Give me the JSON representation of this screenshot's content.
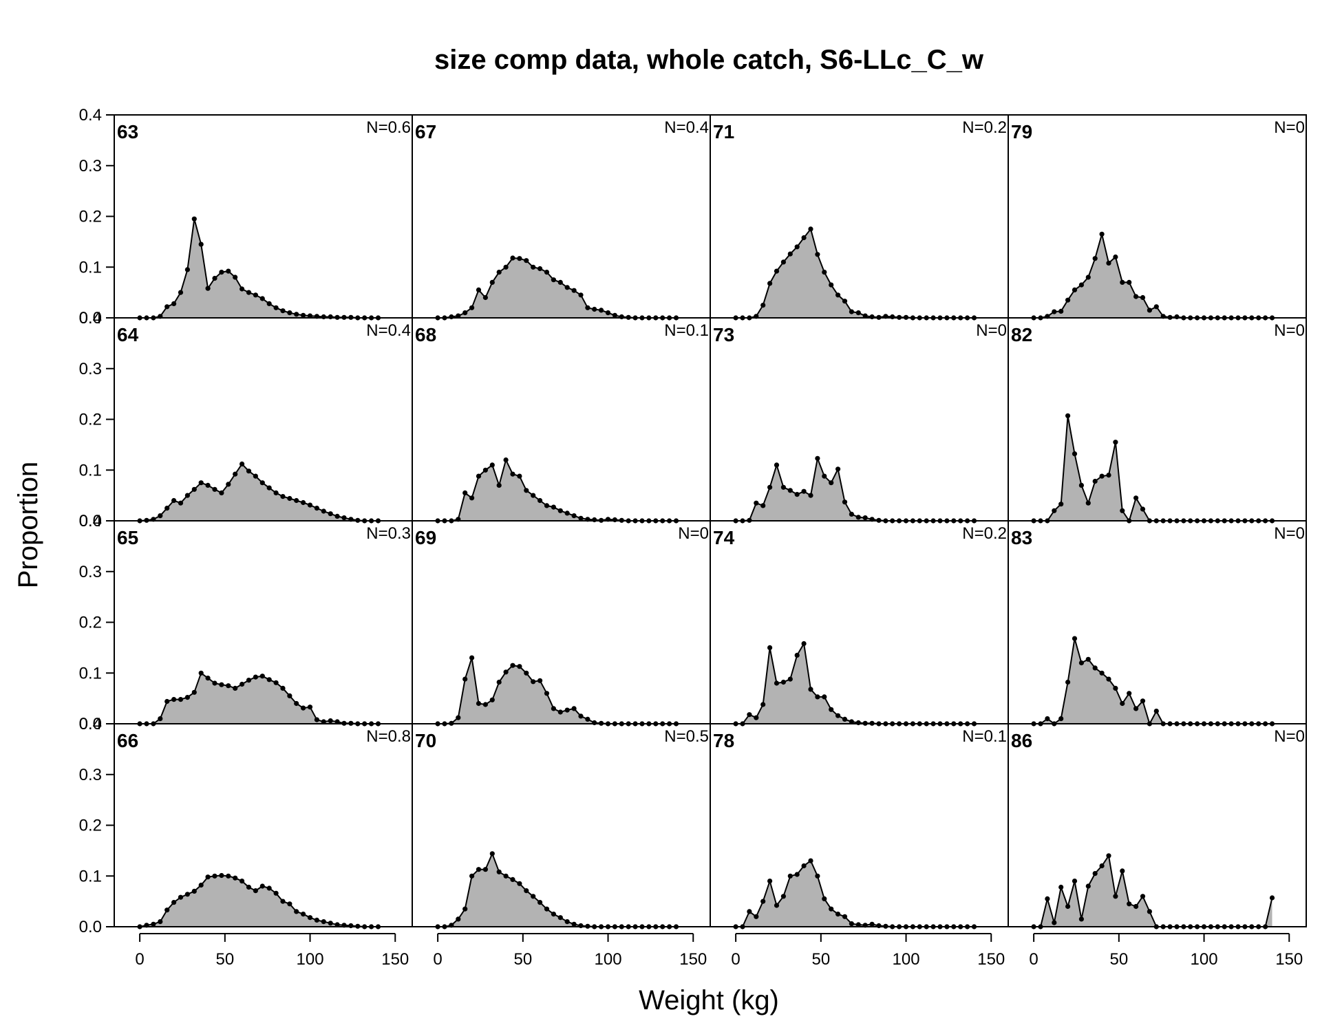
{
  "chart_data": {
    "type": "area",
    "title": "size comp data, whole catch, S6-LLc_C_w",
    "xlabel": "Weight (kg)",
    "ylabel": "Proportion",
    "xlim": [
      -15,
      160
    ],
    "ylim": [
      0,
      0.4
    ],
    "xticks": [
      0,
      50,
      100,
      150
    ],
    "yticks": [
      0.0,
      0.1,
      0.2,
      0.3,
      0.4
    ],
    "ytick_labels": [
      "0.0",
      "0.1",
      "0.2",
      "0.3",
      "0.4"
    ],
    "grid": false,
    "layout": {
      "rows": 4,
      "cols": 4,
      "order": "column-major"
    },
    "x": [
      0,
      4,
      8,
      12,
      16,
      20,
      24,
      28,
      32,
      36,
      40,
      44,
      48,
      52,
      56,
      60,
      64,
      68,
      72,
      76,
      80,
      84,
      88,
      92,
      96,
      100,
      104,
      108,
      112,
      116,
      120,
      124,
      128,
      132,
      136,
      140
    ],
    "panels": [
      {
        "year": "63",
        "n": "N=0.6",
        "values": [
          0,
          0,
          0,
          0.003,
          0.022,
          0.028,
          0.05,
          0.095,
          0.195,
          0.145,
          0.058,
          0.078,
          0.09,
          0.092,
          0.08,
          0.057,
          0.05,
          0.045,
          0.038,
          0.028,
          0.02,
          0.014,
          0.01,
          0.007,
          0.005,
          0.004,
          0.003,
          0.002,
          0.002,
          0.001,
          0.001,
          0.001,
          0,
          0,
          0,
          0
        ]
      },
      {
        "year": "64",
        "n": "N=0.4",
        "values": [
          0,
          0.001,
          0.003,
          0.01,
          0.025,
          0.04,
          0.035,
          0.05,
          0.062,
          0.075,
          0.07,
          0.062,
          0.055,
          0.072,
          0.092,
          0.112,
          0.098,
          0.088,
          0.075,
          0.065,
          0.055,
          0.048,
          0.044,
          0.04,
          0.036,
          0.031,
          0.025,
          0.019,
          0.014,
          0.009,
          0.006,
          0.003,
          0.001,
          0,
          0,
          0
        ]
      },
      {
        "year": "65",
        "n": "N=0.3",
        "values": [
          0,
          0,
          0,
          0.01,
          0.044,
          0.048,
          0.048,
          0.052,
          0.062,
          0.1,
          0.09,
          0.08,
          0.077,
          0.075,
          0.07,
          0.078,
          0.086,
          0.092,
          0.094,
          0.087,
          0.081,
          0.07,
          0.055,
          0.04,
          0.031,
          0.033,
          0.008,
          0.004,
          0.006,
          0.004,
          0.001,
          0.001,
          0,
          0,
          0,
          0
        ]
      },
      {
        "year": "66",
        "n": "N=0.8",
        "values": [
          0,
          0.003,
          0.005,
          0.01,
          0.033,
          0.048,
          0.058,
          0.064,
          0.07,
          0.082,
          0.098,
          0.1,
          0.101,
          0.1,
          0.096,
          0.09,
          0.078,
          0.071,
          0.08,
          0.076,
          0.066,
          0.05,
          0.045,
          0.03,
          0.025,
          0.018,
          0.013,
          0.01,
          0.007,
          0.004,
          0.003,
          0.002,
          0.001,
          0,
          0,
          0
        ]
      },
      {
        "year": "67",
        "n": "N=0.4",
        "values": [
          0,
          0,
          0.002,
          0.004,
          0.01,
          0.02,
          0.055,
          0.04,
          0.07,
          0.09,
          0.1,
          0.118,
          0.117,
          0.113,
          0.1,
          0.097,
          0.09,
          0.075,
          0.07,
          0.06,
          0.054,
          0.045,
          0.02,
          0.017,
          0.015,
          0.01,
          0.005,
          0.002,
          0.001,
          0,
          0,
          0,
          0,
          0,
          0,
          0
        ]
      },
      {
        "year": "68",
        "n": "N=0.1",
        "values": [
          0,
          0,
          0,
          0.003,
          0.055,
          0.045,
          0.088,
          0.1,
          0.11,
          0.07,
          0.12,
          0.092,
          0.088,
          0.06,
          0.05,
          0.04,
          0.03,
          0.027,
          0.02,
          0.015,
          0.01,
          0.005,
          0.003,
          0.002,
          0.001,
          0.003,
          0.002,
          0.001,
          0,
          0,
          0,
          0,
          0,
          0,
          0,
          0
        ]
      },
      {
        "year": "69",
        "n": "N=0",
        "values": [
          0,
          0,
          0.001,
          0.012,
          0.088,
          0.13,
          0.04,
          0.038,
          0.047,
          0.082,
          0.102,
          0.115,
          0.113,
          0.1,
          0.083,
          0.085,
          0.06,
          0.03,
          0.023,
          0.027,
          0.03,
          0.015,
          0.009,
          0.002,
          0.001,
          0,
          0,
          0,
          0,
          0,
          0,
          0,
          0,
          0,
          0,
          0
        ]
      },
      {
        "year": "70",
        "n": "N=0.5",
        "values": [
          0,
          0,
          0.003,
          0.015,
          0.035,
          0.1,
          0.113,
          0.113,
          0.144,
          0.108,
          0.1,
          0.093,
          0.085,
          0.071,
          0.06,
          0.048,
          0.035,
          0.025,
          0.018,
          0.01,
          0.005,
          0.002,
          0.001,
          0,
          0,
          0,
          0,
          0,
          0,
          0,
          0,
          0,
          0,
          0,
          0,
          0
        ]
      },
      {
        "year": "71",
        "n": "N=0.2",
        "values": [
          0,
          0,
          0,
          0.003,
          0.025,
          0.068,
          0.092,
          0.11,
          0.126,
          0.14,
          0.158,
          0.175,
          0.125,
          0.09,
          0.065,
          0.045,
          0.033,
          0.012,
          0.01,
          0.004,
          0.002,
          0.001,
          0.003,
          0.002,
          0.001,
          0.001,
          0,
          0,
          0,
          0,
          0,
          0,
          0,
          0,
          0,
          0
        ]
      },
      {
        "year": "73",
        "n": "N=0",
        "values": [
          0,
          0,
          0.001,
          0.035,
          0.03,
          0.066,
          0.11,
          0.066,
          0.06,
          0.052,
          0.058,
          0.05,
          0.123,
          0.088,
          0.075,
          0.102,
          0.037,
          0.013,
          0.007,
          0.006,
          0.003,
          0.001,
          0,
          0,
          0,
          0,
          0,
          0,
          0,
          0,
          0,
          0,
          0,
          0,
          0,
          0
        ]
      },
      {
        "year": "74",
        "n": "N=0.2",
        "values": [
          0,
          0,
          0.018,
          0.012,
          0.038,
          0.15,
          0.08,
          0.082,
          0.088,
          0.135,
          0.158,
          0.068,
          0.053,
          0.053,
          0.028,
          0.016,
          0.009,
          0.004,
          0.002,
          0.001,
          0.001,
          0,
          0,
          0,
          0,
          0,
          0,
          0,
          0,
          0,
          0,
          0,
          0,
          0,
          0,
          0
        ]
      },
      {
        "year": "78",
        "n": "N=0.1",
        "values": [
          0,
          0,
          0.03,
          0.02,
          0.05,
          0.09,
          0.042,
          0.06,
          0.1,
          0.103,
          0.12,
          0.13,
          0.1,
          0.055,
          0.035,
          0.025,
          0.02,
          0.006,
          0.004,
          0.003,
          0.005,
          0.002,
          0.001,
          0,
          0,
          0,
          0,
          0,
          0,
          0,
          0,
          0,
          0,
          0,
          0,
          0
        ]
      },
      {
        "year": "79",
        "n": "N=0",
        "values": [
          0,
          0,
          0.003,
          0.012,
          0.013,
          0.035,
          0.055,
          0.065,
          0.08,
          0.117,
          0.165,
          0.108,
          0.12,
          0.07,
          0.07,
          0.042,
          0.04,
          0.015,
          0.022,
          0.003,
          0.001,
          0.002,
          0,
          0,
          0,
          0,
          0,
          0,
          0,
          0,
          0,
          0,
          0,
          0,
          0,
          0
        ]
      },
      {
        "year": "82",
        "n": "N=0",
        "values": [
          0,
          0,
          0,
          0.02,
          0.033,
          0.207,
          0.132,
          0.07,
          0.035,
          0.078,
          0.088,
          0.09,
          0.155,
          0.02,
          0,
          0.045,
          0.023,
          0,
          0,
          0,
          0,
          0,
          0,
          0,
          0,
          0,
          0,
          0,
          0,
          0,
          0,
          0,
          0,
          0,
          0,
          0
        ]
      },
      {
        "year": "83",
        "n": "N=0",
        "values": [
          0,
          0,
          0.01,
          0,
          0.01,
          0.082,
          0.168,
          0.12,
          0.127,
          0.11,
          0.1,
          0.088,
          0.07,
          0.04,
          0.06,
          0.03,
          0.045,
          0,
          0.025,
          0,
          0,
          0,
          0,
          0,
          0,
          0,
          0,
          0,
          0,
          0,
          0,
          0,
          0,
          0,
          0,
          0
        ]
      },
      {
        "year": "86",
        "n": "N=0",
        "values": [
          0,
          0,
          0.055,
          0.008,
          0.078,
          0.04,
          0.09,
          0.015,
          0.08,
          0.105,
          0.12,
          0.14,
          0.06,
          0.11,
          0.045,
          0.04,
          0.06,
          0.03,
          0,
          0,
          0,
          0,
          0,
          0,
          0,
          0,
          0,
          0,
          0,
          0,
          0,
          0,
          0,
          0,
          0,
          0.057
        ]
      }
    ]
  },
  "colors": {
    "fill": "#b3b3b3",
    "line": "#000000",
    "background": "#ffffff"
  }
}
